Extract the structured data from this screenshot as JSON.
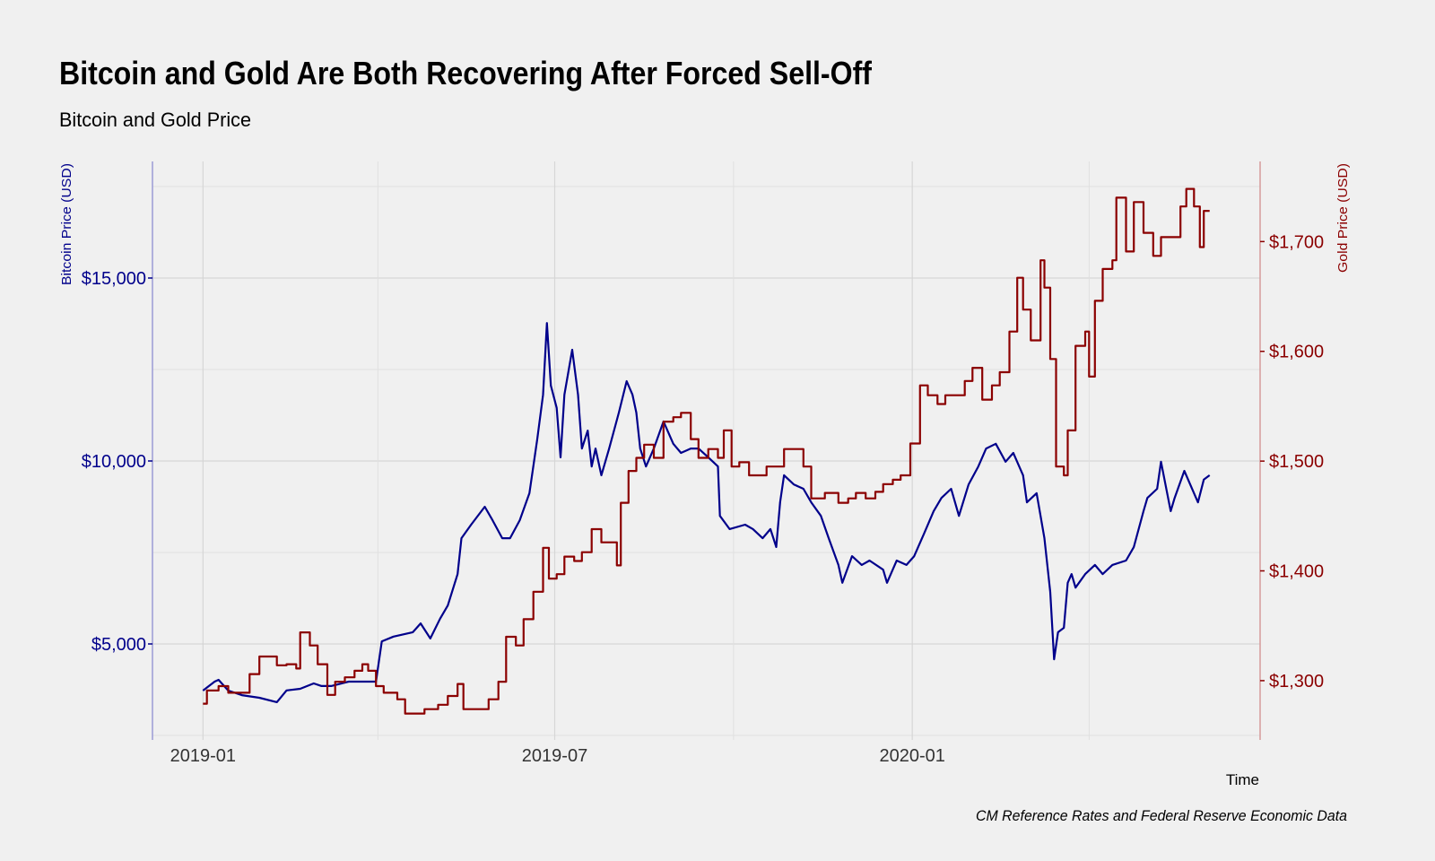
{
  "chart_data": {
    "type": "line",
    "title": "Bitcoin and Gold Are Both Recovering After Forced Sell-Off",
    "subtitle": "Bitcoin and Gold Price",
    "xlabel": "Time",
    "caption": "CM Reference Rates and Federal Reserve Economic Data",
    "xlim": [
      "2018-12-06",
      "2020-06-28"
    ],
    "x_ticks": [
      "2019-01",
      "2019-07",
      "2020-01"
    ],
    "x_minor_ticks": [
      "2019-04",
      "2019-10",
      "2020-04"
    ],
    "grid": true,
    "legend": "none",
    "y_left": {
      "label": "Bitcoin Price (USD)",
      "ylim": [
        2377,
        18186
      ],
      "ticks": [
        5000,
        10000,
        15000
      ],
      "tick_labels": [
        "$5,000",
        "$10,000",
        "$15,000"
      ],
      "minor_ticks": [
        2500,
        7500,
        12500,
        17500
      ],
      "color": "#00008b"
    },
    "y_right": {
      "label": "Gold Price (USD)",
      "ylim": [
        1246,
        1773
      ],
      "ticks": [
        1300,
        1400,
        1500,
        1600,
        1700
      ],
      "tick_labels": [
        "$1,300",
        "$1,400",
        "$1,500",
        "$1,600",
        "$1,700"
      ],
      "color": "#8b0000"
    },
    "series": [
      {
        "axis": "left",
        "color": "#00008b",
        "style": "line",
        "points": [
          [
            "2019-01-01",
            3725
          ],
          [
            "2019-01-07",
            3970
          ],
          [
            "2019-01-09",
            4020
          ],
          [
            "2019-01-14",
            3725
          ],
          [
            "2019-01-21",
            3600
          ],
          [
            "2019-01-30",
            3530
          ],
          [
            "2019-02-08",
            3410
          ],
          [
            "2019-02-13",
            3730
          ],
          [
            "2019-02-20",
            3775
          ],
          [
            "2019-02-27",
            3920
          ],
          [
            "2019-03-03",
            3850
          ],
          [
            "2019-03-08",
            3850
          ],
          [
            "2019-03-17",
            3970
          ],
          [
            "2019-03-27",
            3970
          ],
          [
            "2019-03-31",
            3970
          ],
          [
            "2019-04-03",
            5070
          ],
          [
            "2019-04-09",
            5200
          ],
          [
            "2019-04-19",
            5320
          ],
          [
            "2019-04-23",
            5560
          ],
          [
            "2019-04-28",
            5150
          ],
          [
            "2019-05-03",
            5690
          ],
          [
            "2019-05-07",
            6050
          ],
          [
            "2019-05-12",
            6910
          ],
          [
            "2019-05-14",
            7890
          ],
          [
            "2019-05-19",
            8260
          ],
          [
            "2019-05-26",
            8750
          ],
          [
            "2019-05-30",
            8380
          ],
          [
            "2019-06-04",
            7890
          ],
          [
            "2019-06-08",
            7890
          ],
          [
            "2019-06-13",
            8380
          ],
          [
            "2019-06-18",
            9120
          ],
          [
            "2019-06-22",
            10590
          ],
          [
            "2019-06-25",
            11810
          ],
          [
            "2019-06-27",
            13770
          ],
          [
            "2019-06-29",
            12060
          ],
          [
            "2019-07-02",
            11450
          ],
          [
            "2019-07-04",
            10100
          ],
          [
            "2019-07-06",
            11810
          ],
          [
            "2019-07-10",
            13040
          ],
          [
            "2019-07-13",
            11810
          ],
          [
            "2019-07-15",
            10340
          ],
          [
            "2019-07-18",
            10830
          ],
          [
            "2019-07-20",
            9850
          ],
          [
            "2019-07-22",
            10340
          ],
          [
            "2019-07-25",
            9610
          ],
          [
            "2019-07-29",
            10340
          ],
          [
            "2019-08-03",
            11320
          ],
          [
            "2019-08-07",
            12180
          ],
          [
            "2019-08-10",
            11810
          ],
          [
            "2019-08-12",
            11320
          ],
          [
            "2019-08-14",
            10340
          ],
          [
            "2019-08-17",
            9850
          ],
          [
            "2019-08-21",
            10340
          ],
          [
            "2019-08-26",
            11080
          ],
          [
            "2019-08-31",
            10470
          ],
          [
            "2019-09-04",
            10220
          ],
          [
            "2019-09-09",
            10340
          ],
          [
            "2019-09-13",
            10340
          ],
          [
            "2019-09-18",
            10100
          ],
          [
            "2019-09-23",
            9850
          ],
          [
            "2019-09-24",
            8500
          ],
          [
            "2019-09-29",
            8140
          ],
          [
            "2019-10-07",
            8260
          ],
          [
            "2019-10-11",
            8140
          ],
          [
            "2019-10-16",
            7890
          ],
          [
            "2019-10-20",
            8140
          ],
          [
            "2019-10-23",
            7650
          ],
          [
            "2019-10-25",
            8870
          ],
          [
            "2019-10-27",
            9610
          ],
          [
            "2019-11-01",
            9360
          ],
          [
            "2019-11-06",
            9240
          ],
          [
            "2019-11-10",
            8870
          ],
          [
            "2019-11-15",
            8500
          ],
          [
            "2019-11-19",
            7890
          ],
          [
            "2019-11-24",
            7160
          ],
          [
            "2019-11-26",
            6670
          ],
          [
            "2019-12-01",
            7400
          ],
          [
            "2019-12-06",
            7160
          ],
          [
            "2019-12-10",
            7280
          ],
          [
            "2019-12-17",
            7030
          ],
          [
            "2019-12-19",
            6670
          ],
          [
            "2019-12-24",
            7280
          ],
          [
            "2019-12-29",
            7160
          ],
          [
            "2020-01-02",
            7400
          ],
          [
            "2020-01-07",
            8010
          ],
          [
            "2020-01-12",
            8630
          ],
          [
            "2020-01-16",
            8990
          ],
          [
            "2020-01-21",
            9240
          ],
          [
            "2020-01-25",
            8500
          ],
          [
            "2020-01-30",
            9360
          ],
          [
            "2020-02-04",
            9850
          ],
          [
            "2020-02-08",
            10340
          ],
          [
            "2020-02-13",
            10470
          ],
          [
            "2020-02-18",
            9980
          ],
          [
            "2020-02-22",
            10220
          ],
          [
            "2020-02-27",
            9610
          ],
          [
            "2020-02-29",
            8870
          ],
          [
            "2020-03-05",
            9120
          ],
          [
            "2020-03-07",
            8500
          ],
          [
            "2020-03-09",
            7890
          ],
          [
            "2020-03-12",
            6420
          ],
          [
            "2020-03-14",
            4580
          ],
          [
            "2020-03-16",
            5320
          ],
          [
            "2020-03-19",
            5440
          ],
          [
            "2020-03-21",
            6670
          ],
          [
            "2020-03-23",
            6910
          ],
          [
            "2020-03-25",
            6540
          ],
          [
            "2020-03-30",
            6910
          ],
          [
            "2020-04-04",
            7160
          ],
          [
            "2020-04-08",
            6910
          ],
          [
            "2020-04-13",
            7160
          ],
          [
            "2020-04-20",
            7280
          ],
          [
            "2020-04-24",
            7650
          ],
          [
            "2020-04-29",
            8630
          ],
          [
            "2020-05-01",
            8990
          ],
          [
            "2020-05-06",
            9240
          ],
          [
            "2020-05-08",
            9980
          ],
          [
            "2020-05-13",
            8630
          ],
          [
            "2020-05-15",
            8990
          ],
          [
            "2020-05-20",
            9730
          ],
          [
            "2020-05-25",
            9120
          ],
          [
            "2020-05-27",
            8870
          ],
          [
            "2020-05-30",
            9490
          ],
          [
            "2020-06-02",
            9610
          ]
        ]
      },
      {
        "axis": "right",
        "color": "#8b0000",
        "style": "step",
        "points": [
          [
            "2019-01-01",
            1279
          ],
          [
            "2019-01-03",
            1291
          ],
          [
            "2019-01-09",
            1295
          ],
          [
            "2019-01-14",
            1289
          ],
          [
            "2019-01-25",
            1306
          ],
          [
            "2019-01-30",
            1322
          ],
          [
            "2019-02-08",
            1314
          ],
          [
            "2019-02-13",
            1315
          ],
          [
            "2019-02-18",
            1311
          ],
          [
            "2019-02-20",
            1344
          ],
          [
            "2019-02-25",
            1332
          ],
          [
            "2019-03-01",
            1315
          ],
          [
            "2019-03-06",
            1287
          ],
          [
            "2019-03-10",
            1299
          ],
          [
            "2019-03-15",
            1303
          ],
          [
            "2019-03-20",
            1309
          ],
          [
            "2019-03-24",
            1315
          ],
          [
            "2019-03-27",
            1309
          ],
          [
            "2019-03-31",
            1295
          ],
          [
            "2019-04-04",
            1289
          ],
          [
            "2019-04-11",
            1283
          ],
          [
            "2019-04-15",
            1270
          ],
          [
            "2019-04-25",
            1274
          ],
          [
            "2019-05-02",
            1278
          ],
          [
            "2019-05-07",
            1286
          ],
          [
            "2019-05-12",
            1297
          ],
          [
            "2019-05-15",
            1274
          ],
          [
            "2019-05-23",
            1274
          ],
          [
            "2019-05-28",
            1283
          ],
          [
            "2019-06-02",
            1299
          ],
          [
            "2019-06-06",
            1340
          ],
          [
            "2019-06-11",
            1332
          ],
          [
            "2019-06-15",
            1356
          ],
          [
            "2019-06-20",
            1381
          ],
          [
            "2019-06-25",
            1421
          ],
          [
            "2019-06-28",
            1393
          ],
          [
            "2019-07-02",
            1397
          ],
          [
            "2019-07-06",
            1413
          ],
          [
            "2019-07-11",
            1409
          ],
          [
            "2019-07-15",
            1417
          ],
          [
            "2019-07-20",
            1438
          ],
          [
            "2019-07-25",
            1426
          ],
          [
            "2019-07-29",
            1426
          ],
          [
            "2019-08-02",
            1405
          ],
          [
            "2019-08-04",
            1462
          ],
          [
            "2019-08-08",
            1491
          ],
          [
            "2019-08-12",
            1503
          ],
          [
            "2019-08-16",
            1515
          ],
          [
            "2019-08-21",
            1503
          ],
          [
            "2019-08-26",
            1536
          ],
          [
            "2019-08-31",
            1540
          ],
          [
            "2019-09-04",
            1544
          ],
          [
            "2019-09-09",
            1520
          ],
          [
            "2019-09-13",
            1503
          ],
          [
            "2019-09-18",
            1511
          ],
          [
            "2019-09-23",
            1503
          ],
          [
            "2019-09-26",
            1528
          ],
          [
            "2019-09-30",
            1495
          ],
          [
            "2019-10-04",
            1499
          ],
          [
            "2019-10-09",
            1487
          ],
          [
            "2019-10-13",
            1487
          ],
          [
            "2019-10-18",
            1495
          ],
          [
            "2019-10-23",
            1495
          ],
          [
            "2019-10-27",
            1511
          ],
          [
            "2019-11-01",
            1511
          ],
          [
            "2019-11-06",
            1495
          ],
          [
            "2019-11-10",
            1466
          ],
          [
            "2019-11-17",
            1471
          ],
          [
            "2019-11-24",
            1462
          ],
          [
            "2019-11-29",
            1466
          ],
          [
            "2019-12-03",
            1471
          ],
          [
            "2019-12-08",
            1466
          ],
          [
            "2019-12-13",
            1472
          ],
          [
            "2019-12-17",
            1479
          ],
          [
            "2019-12-22",
            1483
          ],
          [
            "2019-12-26",
            1487
          ],
          [
            "2019-12-31",
            1516
          ],
          [
            "2020-01-05",
            1569
          ],
          [
            "2020-01-09",
            1560
          ],
          [
            "2020-01-14",
            1552
          ],
          [
            "2020-01-18",
            1560
          ],
          [
            "2020-01-23",
            1560
          ],
          [
            "2020-01-28",
            1573
          ],
          [
            "2020-02-01",
            1585
          ],
          [
            "2020-02-06",
            1556
          ],
          [
            "2020-02-11",
            1569
          ],
          [
            "2020-02-15",
            1581
          ],
          [
            "2020-02-20",
            1618
          ],
          [
            "2020-02-24",
            1667
          ],
          [
            "2020-02-27",
            1638
          ],
          [
            "2020-03-02",
            1610
          ],
          [
            "2020-03-07",
            1683
          ],
          [
            "2020-03-09",
            1658
          ],
          [
            "2020-03-12",
            1593
          ],
          [
            "2020-03-15",
            1495
          ],
          [
            "2020-03-19",
            1487
          ],
          [
            "2020-03-21",
            1528
          ],
          [
            "2020-03-25",
            1605
          ],
          [
            "2020-03-30",
            1618
          ],
          [
            "2020-04-01",
            1577
          ],
          [
            "2020-04-04",
            1646
          ],
          [
            "2020-04-08",
            1675
          ],
          [
            "2020-04-13",
            1683
          ],
          [
            "2020-04-15",
            1740
          ],
          [
            "2020-04-20",
            1691
          ],
          [
            "2020-04-24",
            1736
          ],
          [
            "2020-04-29",
            1708
          ],
          [
            "2020-05-04",
            1687
          ],
          [
            "2020-05-08",
            1704
          ],
          [
            "2020-05-13",
            1704
          ],
          [
            "2020-05-18",
            1732
          ],
          [
            "2020-05-21",
            1748
          ],
          [
            "2020-05-25",
            1732
          ],
          [
            "2020-05-28",
            1695
          ],
          [
            "2020-05-30",
            1728
          ],
          [
            "2020-06-02",
            1728
          ]
        ]
      }
    ]
  }
}
